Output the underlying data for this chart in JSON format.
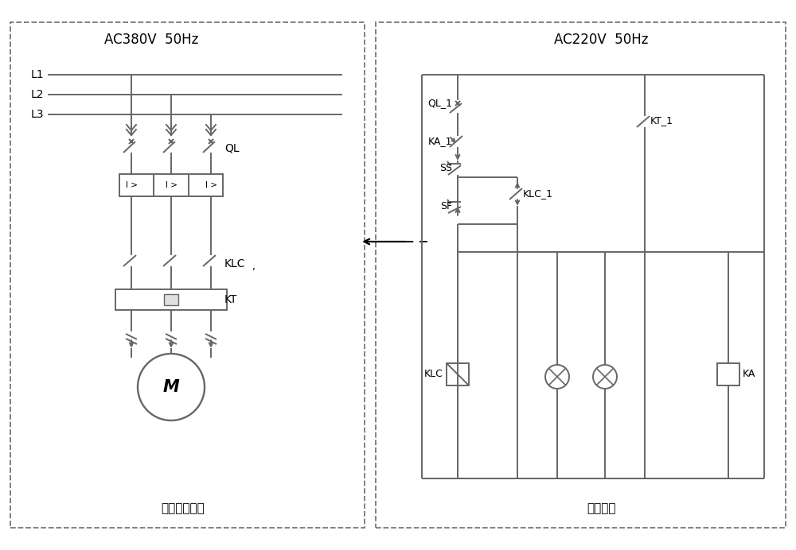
{
  "bg_color": "#ffffff",
  "line_color": "#666666",
  "dash_color": "#777777",
  "title_left": "AC380V  50Hz",
  "title_right": "AC220V  50Hz",
  "label_left": "风机驱动电路",
  "label_right": "控制装置",
  "lw": 1.4
}
